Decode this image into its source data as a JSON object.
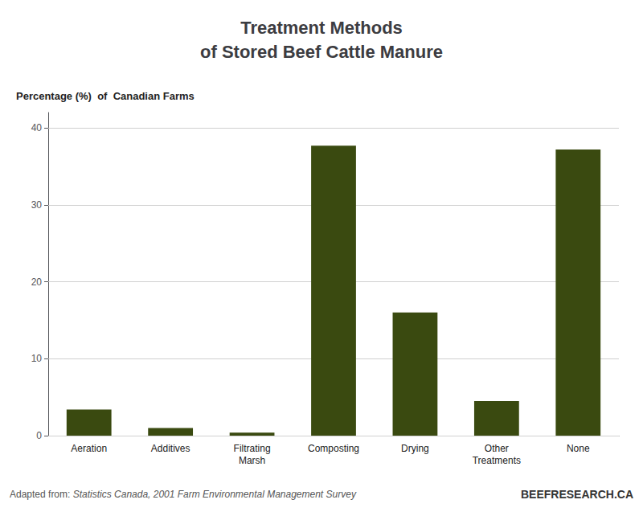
{
  "chart_data": {
    "type": "bar",
    "title": "Treatment Methods\nof Stored Beef Cattle Manure",
    "y_label": "Percentage (%)  of  Canadian Farms",
    "categories": [
      "Aeration",
      "Additives",
      "Filtrating\nMarsh",
      "Composting",
      "Drying",
      "Other\nTreatments",
      "None"
    ],
    "values": [
      3.4,
      1.0,
      0.4,
      37.7,
      16.0,
      4.5,
      37.2
    ],
    "color": "#3a4a10",
    "ylim": [
      0,
      42
    ],
    "yticks": [
      0,
      10,
      20,
      30,
      40
    ],
    "grid": true,
    "annotations": [
      "Adapted from:",
      "Statistics Canada, 2001 Farm Environmental Management Survey",
      "BEEFRESEARCH.CA"
    ]
  }
}
